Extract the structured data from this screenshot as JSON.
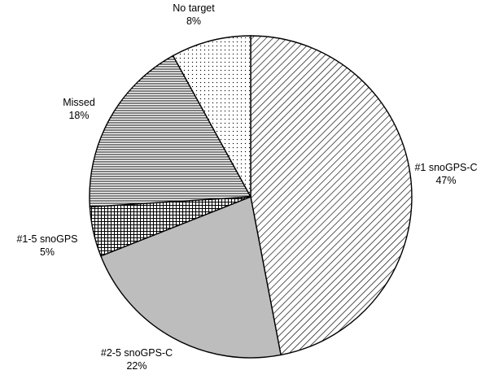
{
  "chart_data": {
    "type": "pie",
    "start_angle_deg": 0,
    "direction": "clockwise",
    "slices": [
      {
        "label": "#1 snoGPS-C",
        "value": 47,
        "value_label": "47%",
        "fill": "diagonal-hatch"
      },
      {
        "label": "#2-5 snoGPS-C",
        "value": 22,
        "value_label": "22%",
        "fill": "gray",
        "color": "#bdbdbd"
      },
      {
        "label": "#1-5 snoGPS",
        "value": 5,
        "value_label": "5%",
        "fill": "crosshatch"
      },
      {
        "label": "Missed",
        "value": 18,
        "value_label": "18%",
        "fill": "horizontal-lines"
      },
      {
        "label": "No target",
        "value": 8,
        "value_label": "8%",
        "fill": "dots"
      }
    ]
  }
}
